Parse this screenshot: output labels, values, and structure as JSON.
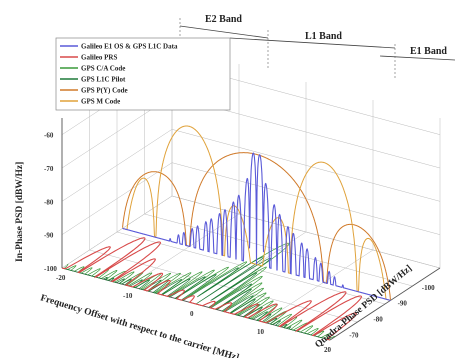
{
  "chart_data": {
    "type": "line",
    "title": "",
    "xlabel": "Frequency Offset with respect to the carrier [MHz]",
    "ylabel": "In-Phase PSD [dBW/Hz]",
    "zlabel": "Quadra-Phase PSD [dBW/Hz]",
    "x_ticks": [
      "-20",
      "-10",
      "0",
      "10",
      "20"
    ],
    "y_ticks": [
      "-60",
      "-70",
      "-80",
      "-90",
      "-100"
    ],
    "z_ticks": [
      "-70",
      "-80",
      "-90",
      "-100"
    ],
    "xlim": [
      -20,
      20
    ],
    "ylim": [
      -100,
      -55
    ],
    "grid": true,
    "legend_position": "top-left",
    "bands": [
      {
        "label": "E2 Band",
        "from": -20,
        "to": -10
      },
      {
        "label": "L1 Band",
        "from": -10,
        "to": 10
      },
      {
        "label": "E1 Band",
        "from": 10,
        "to": 20
      }
    ],
    "series": [
      {
        "name": "Galileo E1 OS & GPS L1C Data",
        "color": "#5a5ad8",
        "plane": "in-phase",
        "shape": "boc-sinc-comb"
      },
      {
        "name": "Galileo PRS",
        "color": "#d84a4a",
        "plane": "quadrature",
        "shape": "boc-split-lobes"
      },
      {
        "name": "GPS C/A Code",
        "color": "#3a9a3a",
        "plane": "quadrature",
        "shape": "sinc-comb"
      },
      {
        "name": "GPS L1C Pilot",
        "color": "#1e7a3a",
        "plane": "quadrature",
        "shape": "boc"
      },
      {
        "name": "GPS P(Y) Code",
        "color": "#d07a2a",
        "plane": "in-phase",
        "shape": "sinc-wide"
      },
      {
        "name": "GPS M Code",
        "color": "#e0a23a",
        "plane": "in-phase",
        "shape": "boc-split-lobes"
      }
    ]
  },
  "colors": {
    "axis": "#555555",
    "grid": "#bbbbbb",
    "background": "#ffffff"
  }
}
